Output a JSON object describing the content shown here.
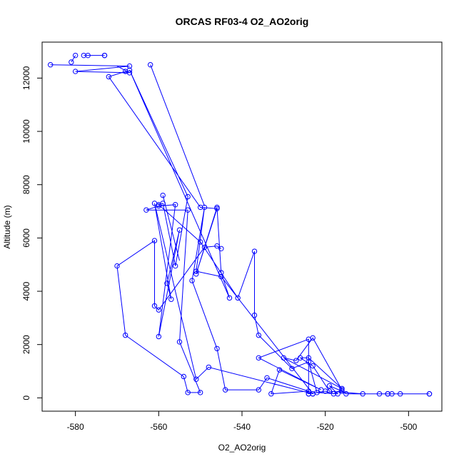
{
  "chart_data": {
    "type": "line",
    "title": "ORCAS RF03-4 O2_AO2orig",
    "xlabel": "O2_AO2orig",
    "ylabel": "Altitude (m)",
    "xlim": [
      -588,
      -492
    ],
    "ylim": [
      -500,
      13350
    ],
    "x_ticks": [
      -580,
      -560,
      -540,
      -520,
      -500
    ],
    "y_ticks": [
      0,
      2000,
      4000,
      6000,
      8000,
      10000,
      12000
    ],
    "x_tick_labels": [
      "-580",
      "-560",
      "-540",
      "-520",
      "-500"
    ],
    "y_tick_labels": [
      "0",
      "2000",
      "4000",
      "6000",
      "8000",
      "10000",
      "12000"
    ],
    "grid": false,
    "legend": "none",
    "series_color": "#0000ff",
    "series": [
      {
        "points": [
          [
            -586,
            12500
          ],
          [
            -567,
            12450
          ],
          [
            -580,
            12250
          ],
          [
            -567,
            12200
          ],
          [
            -568,
            12250
          ],
          [
            -572,
            12050
          ],
          [
            -550,
            7150
          ],
          [
            -546,
            7100
          ],
          [
            -551,
            4650
          ],
          [
            -546,
            7150
          ],
          [
            -545,
            4700
          ],
          [
            -543,
            3750
          ],
          [
            -567,
            12300
          ],
          [
            -553,
            7550
          ],
          [
            -556,
            4950
          ],
          [
            -559,
            7300
          ],
          [
            -560,
            7250
          ],
          [
            -550,
            5850
          ],
          [
            -541,
            3750
          ],
          [
            -537,
            5500
          ],
          [
            -537,
            3100
          ],
          [
            -536,
            2350
          ],
          [
            -528,
            1100
          ],
          [
            -524,
            1350
          ],
          [
            -522,
            200
          ],
          [
            -517,
            150
          ],
          [
            -519,
            450
          ],
          [
            -516,
            250
          ],
          [
            -515,
            150
          ],
          [
            -505,
            150
          ],
          [
            -495,
            150
          ],
          [
            -507,
            150
          ],
          [
            -511,
            150
          ],
          [
            -519,
            250
          ],
          [
            -523,
            1200
          ],
          [
            -526,
            1500
          ],
          [
            -524,
            1500
          ],
          [
            -516,
            350
          ],
          [
            -530,
            1500
          ],
          [
            -527,
            1400
          ],
          [
            -523,
            2250
          ],
          [
            -516,
            300
          ],
          [
            -518,
            150
          ],
          [
            -520,
            250
          ],
          [
            -524,
            150
          ],
          [
            -524,
            2200
          ],
          [
            -536,
            1500
          ],
          [
            -521,
            300
          ],
          [
            -531,
            1050
          ],
          [
            -533,
            150
          ],
          [
            -524,
            250
          ],
          [
            -534,
            750
          ],
          [
            -536,
            300
          ],
          [
            -544,
            300
          ],
          [
            -546,
            1850
          ],
          [
            -552,
            4400
          ],
          [
            -549,
            7150
          ],
          [
            -551,
            4750
          ],
          [
            -545,
            4550
          ],
          [
            -523,
            150
          ],
          [
            -548,
            1150
          ],
          [
            -551,
            700
          ],
          [
            -561,
            7300
          ],
          [
            -557,
            3700
          ],
          [
            -558,
            4300
          ],
          [
            -555,
            6300
          ],
          [
            -560,
            2300
          ],
          [
            -556,
            7250
          ],
          [
            -560,
            7200
          ],
          [
            -563,
            7050
          ],
          [
            -553,
            7050
          ],
          [
            -555,
            2100
          ],
          [
            -550,
            200
          ],
          [
            -553,
            200
          ],
          [
            -554,
            800
          ],
          [
            -568,
            2350
          ],
          [
            -570,
            4950
          ],
          [
            -561,
            5900
          ],
          [
            -561,
            3450
          ],
          [
            -560,
            3300
          ],
          [
            -549,
            5650
          ],
          [
            -546,
            5700
          ],
          [
            -545,
            5600
          ]
        ]
      }
    ],
    "extra_segments": [
      [
        [
          -562,
          12500
        ],
        [
          -549,
          7200
        ]
      ],
      [
        [
          -559,
          7600
        ],
        [
          -555,
          5150
        ]
      ],
      [
        [
          -581,
          12600
        ],
        [
          -580,
          12850
        ]
      ],
      [
        [
          -578,
          12850
        ],
        [
          -573,
          12850
        ]
      ],
      [
        [
          -570,
          12450
        ],
        [
          -567,
          12200
        ]
      ]
    ],
    "extra_points": [
      [
        -580,
        12850
      ],
      [
        -578,
        12850
      ],
      [
        -577,
        12850
      ],
      [
        -573,
        12850
      ],
      [
        -573,
        12850
      ],
      [
        -581,
        12600
      ],
      [
        -562,
        12500
      ],
      [
        -559,
        7600
      ],
      [
        -505,
        150
      ],
      [
        -504,
        150
      ],
      [
        -502,
        150
      ],
      [
        -495,
        150
      ],
      [
        -524,
        150
      ],
      [
        -523,
        150
      ]
    ]
  }
}
